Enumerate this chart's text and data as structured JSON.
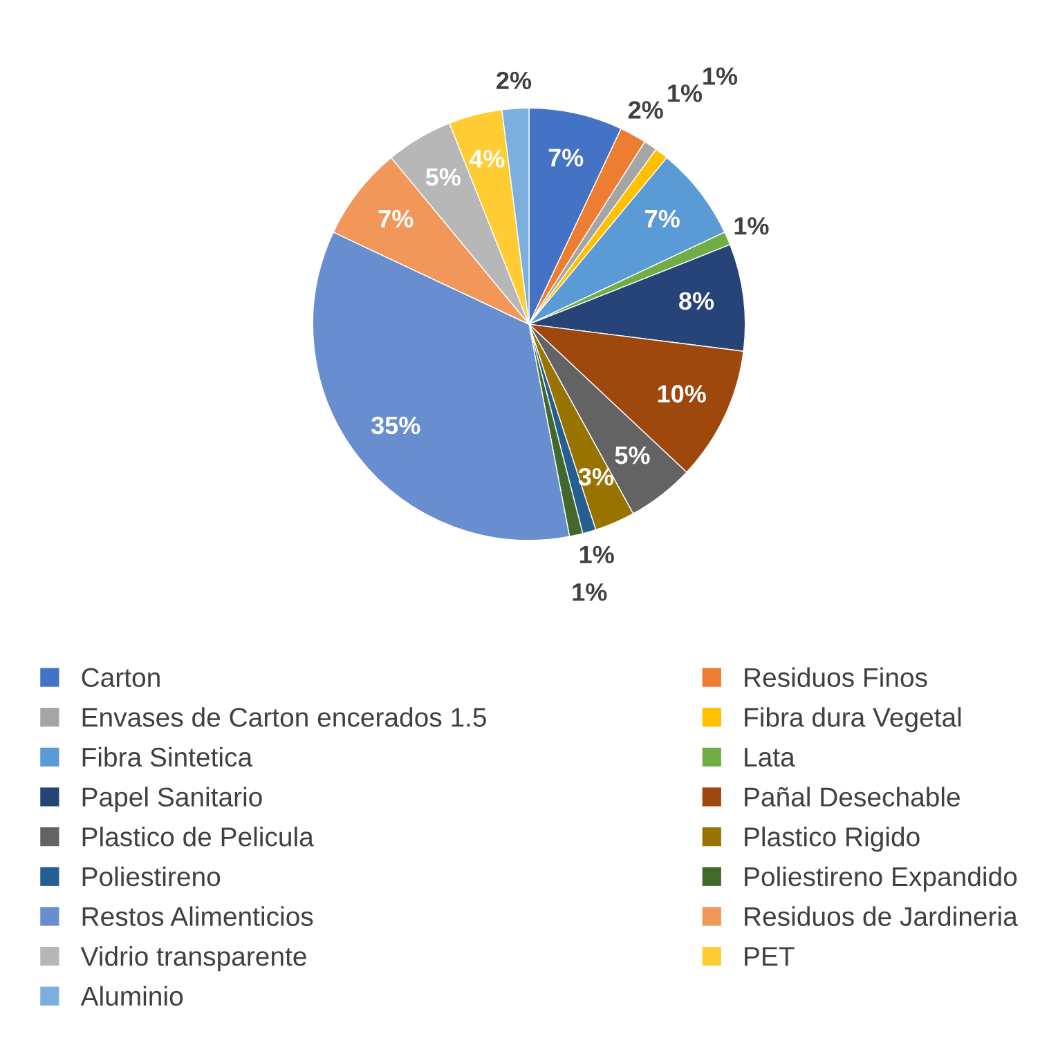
{
  "chart_data": {
    "type": "pie",
    "categories": [
      "Carton",
      "Residuos Finos",
      "Envases de Carton encerados 1.5",
      "Fibra dura Vegetal",
      "Fibra Sintetica",
      "Lata",
      "Papel Sanitario",
      "Pañal Desechable",
      "Plastico de Pelicula",
      "Plastico Rigido",
      "Poliestireno",
      "Poliestireno Expandido",
      "Restos Alimenticios",
      "Residuos de Jardineria",
      "Vidrio transparente",
      "PET",
      "Aluminio"
    ],
    "values": [
      7,
      2,
      1,
      1,
      7,
      1,
      8,
      10,
      5,
      3,
      1,
      1,
      35,
      7,
      5,
      4,
      2
    ],
    "value_labels": [
      "7%",
      "2%",
      "1%",
      "1%",
      "7%",
      "1%",
      "8%",
      "10%",
      "5%",
      "3%",
      "1%",
      "1%",
      "35%",
      "7%",
      "5%",
      "4%",
      "2%"
    ],
    "colors": [
      "#4472c4",
      "#ed7d31",
      "#a5a5a5",
      "#ffc000",
      "#5b9bd5",
      "#70ad47",
      "#264478",
      "#9e480e",
      "#636363",
      "#997300",
      "#255e91",
      "#43682b",
      "#698ed0",
      "#f1975a",
      "#b7b7b7",
      "#ffcd33",
      "#7cafdd"
    ],
    "legend": "bottom"
  }
}
